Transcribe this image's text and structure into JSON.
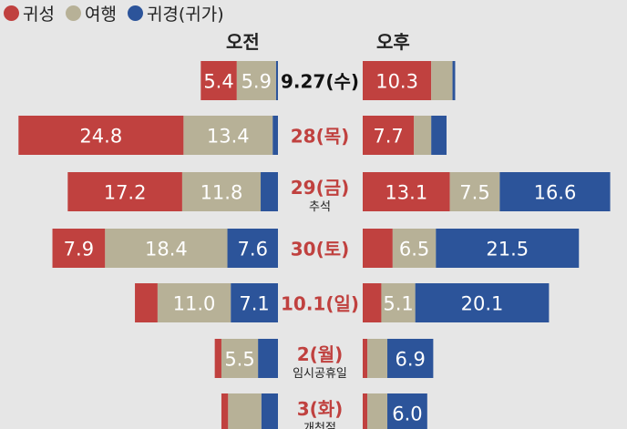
{
  "legend": [
    {
      "label": "귀성",
      "color": "#c0413f"
    },
    {
      "label": "여행",
      "color": "#b7b197"
    },
    {
      "label": "귀경(귀가)",
      "color": "#2c549a"
    }
  ],
  "headers": {
    "am": "오전",
    "pm": "오후"
  },
  "chart_data": {
    "type": "bar",
    "orientation": "horizontal-diverging",
    "units_note": "",
    "categories": [
      "9.27(수)",
      "28(목)",
      "29(금)",
      "30(토)",
      "10.1(일)",
      "2(월)",
      "3(화)"
    ],
    "sublabels": [
      "",
      "",
      "추석",
      "",
      "",
      "임시공휴일",
      "개천절"
    ],
    "highlight": [
      false,
      true,
      true,
      true,
      true,
      true,
      true
    ],
    "am": [
      {
        "귀성": 5.4,
        "여행": 5.9,
        "귀경": 0.3,
        "labels": [
          "5.4",
          "5.9",
          ""
        ]
      },
      {
        "귀성": 24.8,
        "여행": 13.4,
        "귀경": 0.8,
        "labels": [
          "24.8",
          "13.4",
          ""
        ]
      },
      {
        "귀성": 17.2,
        "여행": 11.8,
        "귀경": 2.6,
        "labels": [
          "17.2",
          "11.8",
          ""
        ]
      },
      {
        "귀성": 7.9,
        "여행": 18.4,
        "귀경": 7.6,
        "labels": [
          "7.9",
          "18.4",
          "7.6"
        ]
      },
      {
        "귀성": 3.4,
        "여행": 11.0,
        "귀경": 7.1,
        "labels": [
          "",
          "11.0",
          "7.1"
        ]
      },
      {
        "귀성": 1.0,
        "여행": 5.5,
        "귀경": 3.0,
        "labels": [
          "",
          "5.5",
          ""
        ]
      },
      {
        "귀성": 1.0,
        "여행": 5.0,
        "귀경": 2.5,
        "labels": [
          "",
          "",
          ""
        ]
      }
    ],
    "pm": [
      {
        "귀성": 10.3,
        "여행": 3.2,
        "귀경": 0.4,
        "labels": [
          "10.3",
          "",
          ""
        ]
      },
      {
        "귀성": 7.7,
        "여행": 2.6,
        "귀경": 2.3,
        "labels": [
          "7.7",
          "",
          ""
        ]
      },
      {
        "귀성": 13.1,
        "여행": 7.5,
        "귀경": 16.6,
        "labels": [
          "13.1",
          "7.5",
          "16.6"
        ]
      },
      {
        "귀성": 4.5,
        "여행": 6.5,
        "귀경": 21.5,
        "labels": [
          "",
          "6.5",
          "21.5"
        ]
      },
      {
        "귀성": 2.8,
        "여행": 5.1,
        "귀경": 20.1,
        "labels": [
          "",
          "5.1",
          "20.1"
        ]
      },
      {
        "귀성": 0.7,
        "여행": 3.0,
        "귀경": 6.9,
        "labels": [
          "",
          "",
          "6.9"
        ]
      },
      {
        "귀성": 0.7,
        "여행": 3.0,
        "귀경": 6.0,
        "labels": [
          "",
          "",
          "6.0"
        ]
      }
    ]
  }
}
